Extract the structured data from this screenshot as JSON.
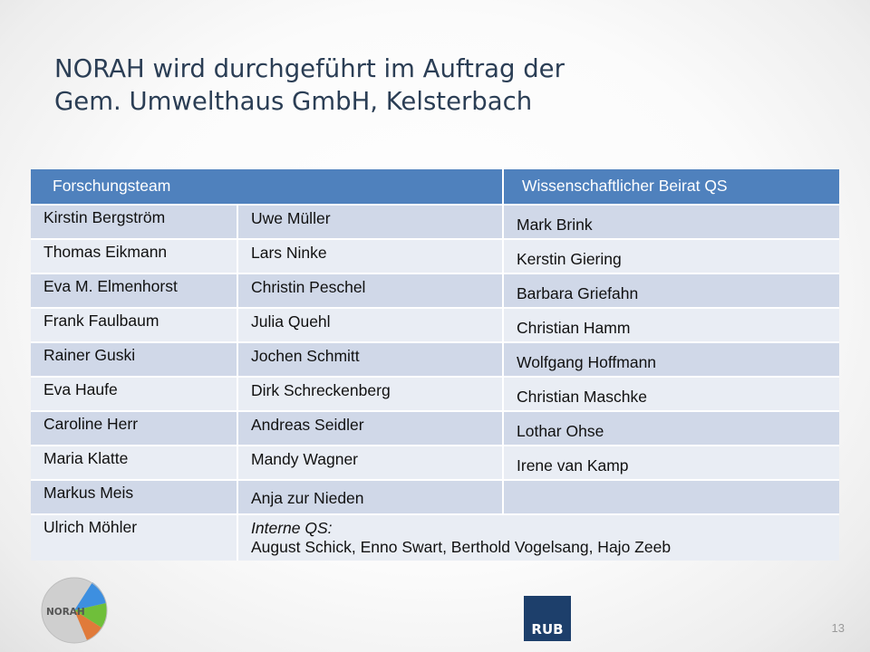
{
  "title": {
    "line1": "NORAH wird durchgeführt im Auftrag der",
    "line2": "Gem. Umwelthaus GmbH, Kelsterbach"
  },
  "table": {
    "header_team": "Forschungsteam",
    "header_beirat": "Wissenschaftlicher Beirat QS",
    "rows": [
      {
        "c1": "Kirstin Bergström",
        "c2": "Uwe Müller",
        "c3": "Mark Brink"
      },
      {
        "c1": "Thomas Eikmann",
        "c2": "Lars Ninke",
        "c3": "Kerstin Giering"
      },
      {
        "c1": "Eva M. Elmenhorst",
        "c2": "Christin Peschel",
        "c3": "Barbara Griefahn"
      },
      {
        "c1": "Frank Faulbaum",
        "c2": "Julia Quehl",
        "c3": "Christian Hamm"
      },
      {
        "c1": "Rainer Guski",
        "c2": "Jochen Schmitt",
        "c3": "Wolfgang Hoffmann"
      },
      {
        "c1": "Eva Haufe",
        "c2": "Dirk Schreckenberg",
        "c3": "Christian Maschke"
      },
      {
        "c1": "Caroline Herr",
        "c2": "Andreas Seidler",
        "c3": "Lothar Ohse"
      },
      {
        "c1": "Maria Klatte",
        "c2": "Mandy Wagner",
        "c3": "Irene van Kamp"
      },
      {
        "c1": "Markus Meis",
        "c2": "Anja zur Nieden",
        "c3": ""
      }
    ],
    "last_row": {
      "c1": "Ulrich Möhler",
      "internal_label": "Interne QS:",
      "internal_names": "August Schick, Enno Swart, Berthold Vogelsang, Hajo Zeeb"
    }
  },
  "logos": {
    "norah_text": "NORAH",
    "rub_text": "RUB"
  },
  "page_number": "13",
  "colors": {
    "header_bg": "#4f81bd",
    "row_dark": "#d0d8e8",
    "row_light": "#e9edf4",
    "title_color": "#2b3e55",
    "rub_blue": "#1d3f6b"
  }
}
